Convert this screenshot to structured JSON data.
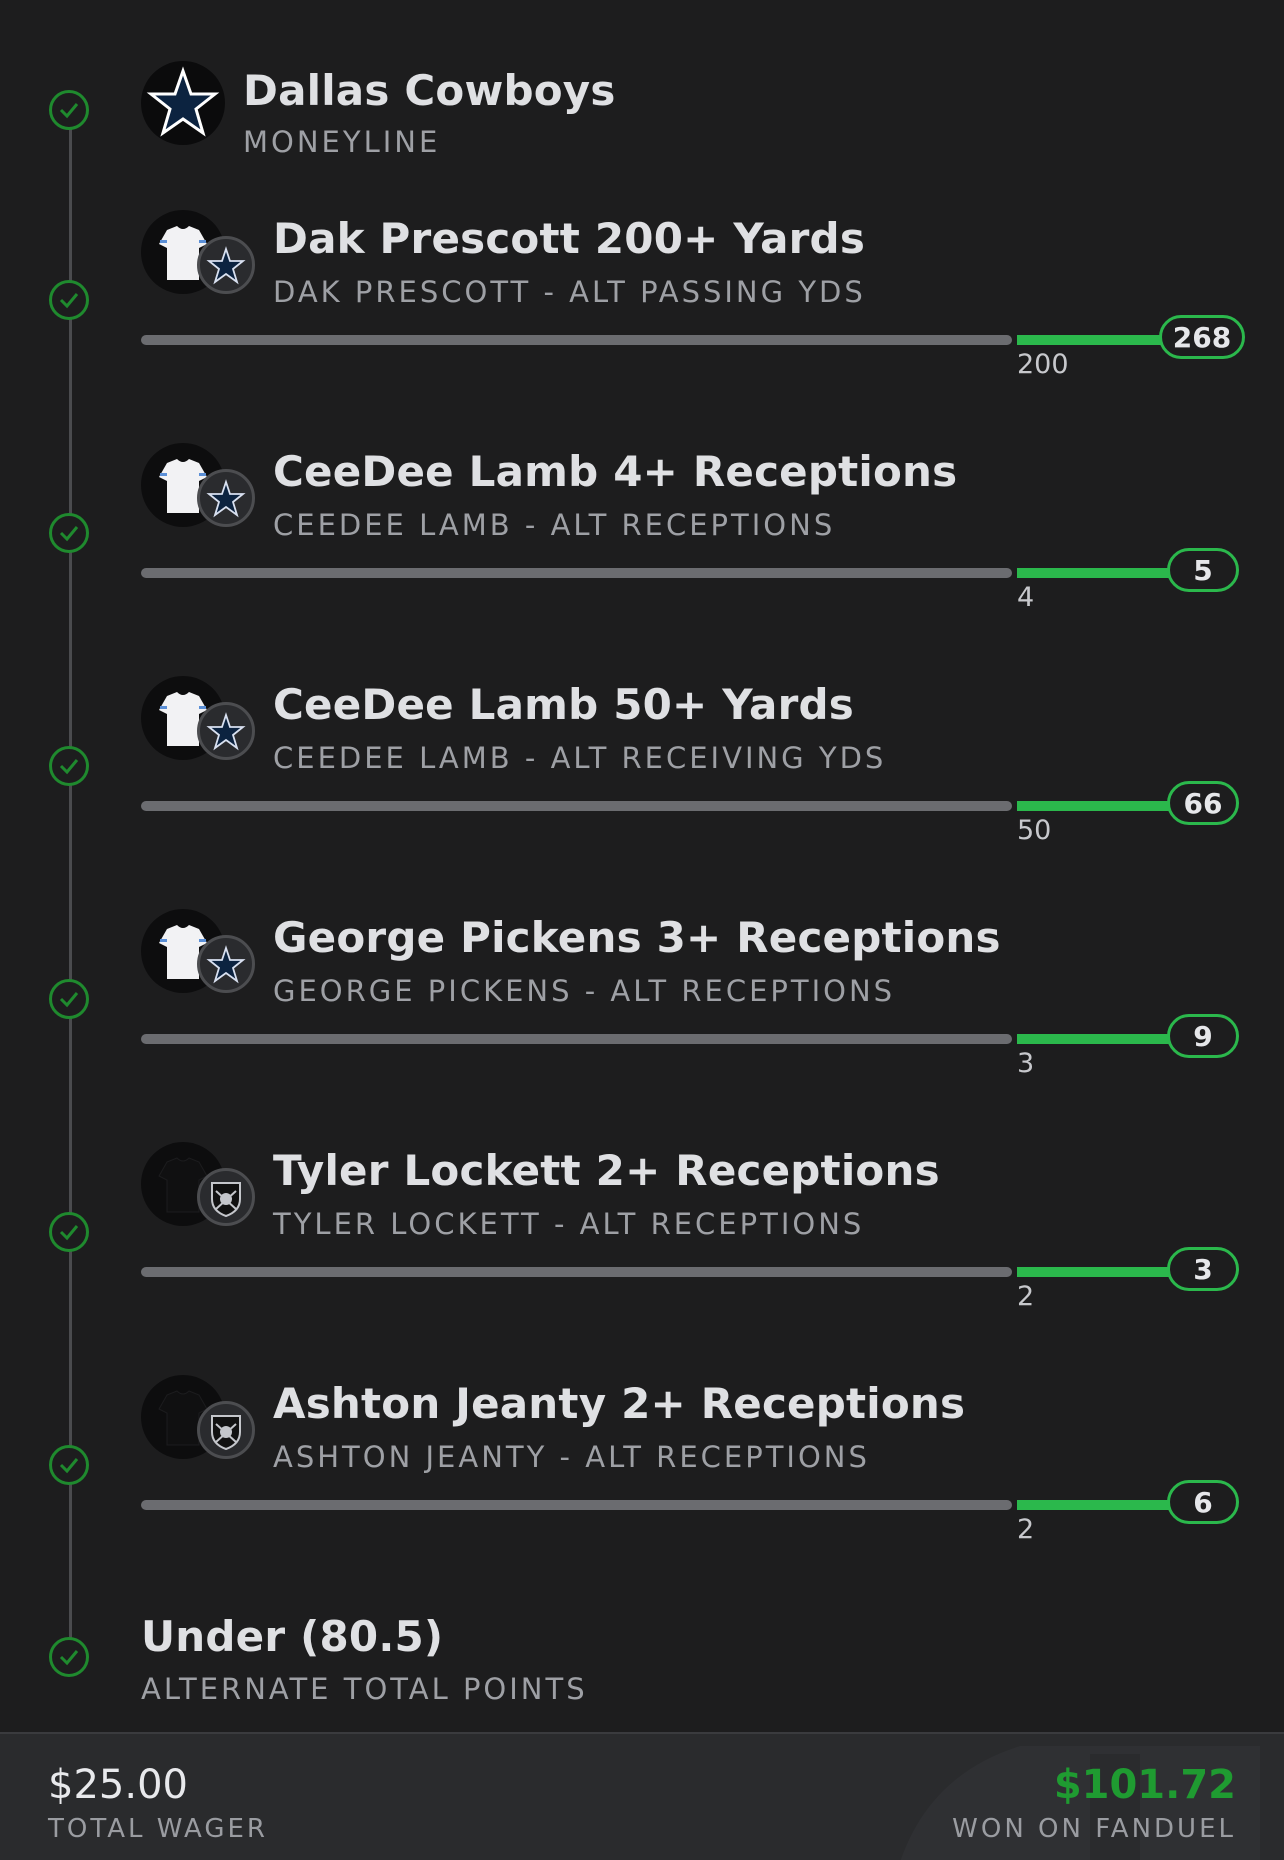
{
  "colors": {
    "background": "#1d1d1e",
    "success_green": "#2bb84c",
    "win_green": "#1f9b31",
    "track_grey": "#6b6c70",
    "cowboys_navy": "#0c2340"
  },
  "legs": [
    {
      "title": "Dallas Cowboys",
      "subtitle": "MONEYLINE",
      "logo": "cowboys-star-icon",
      "status": "won"
    },
    {
      "title": "Dak Prescott 200+ Yards",
      "subtitle": "DAK PRESCOTT - ALT PASSING YDS",
      "jersey": "white",
      "team": "cowboys",
      "threshold": "200",
      "result": "268",
      "status": "won"
    },
    {
      "title": "CeeDee Lamb 4+ Receptions",
      "subtitle": "CEEDEE LAMB - ALT RECEPTIONS",
      "jersey": "white",
      "team": "cowboys",
      "threshold": "4",
      "result": "5",
      "status": "won"
    },
    {
      "title": "CeeDee Lamb 50+ Yards",
      "subtitle": "CEEDEE LAMB - ALT RECEIVING YDS",
      "jersey": "white",
      "team": "cowboys",
      "threshold": "50",
      "result": "66",
      "status": "won"
    },
    {
      "title": "George Pickens 3+ Receptions",
      "subtitle": "GEORGE PICKENS - ALT RECEPTIONS",
      "jersey": "white",
      "team": "cowboys",
      "threshold": "3",
      "result": "9",
      "status": "won"
    },
    {
      "title": "Tyler Lockett 2+ Receptions",
      "subtitle": "TYLER LOCKETT - ALT RECEPTIONS",
      "jersey": "black",
      "team": "raiders",
      "threshold": "2",
      "result": "3",
      "status": "won"
    },
    {
      "title": "Ashton Jeanty 2+ Receptions",
      "subtitle": "ASHTON JEANTY - ALT RECEPTIONS",
      "jersey": "black",
      "team": "raiders",
      "threshold": "2",
      "result": "6",
      "status": "won"
    },
    {
      "title": "Under (80.5)",
      "subtitle": "ALTERNATE TOTAL POINTS",
      "status": "won"
    }
  ],
  "footer": {
    "wager_amount": "$25.00",
    "wager_label": "TOTAL WAGER",
    "won_amount": "$101.72",
    "won_label": "WON ON FANDUEL"
  }
}
